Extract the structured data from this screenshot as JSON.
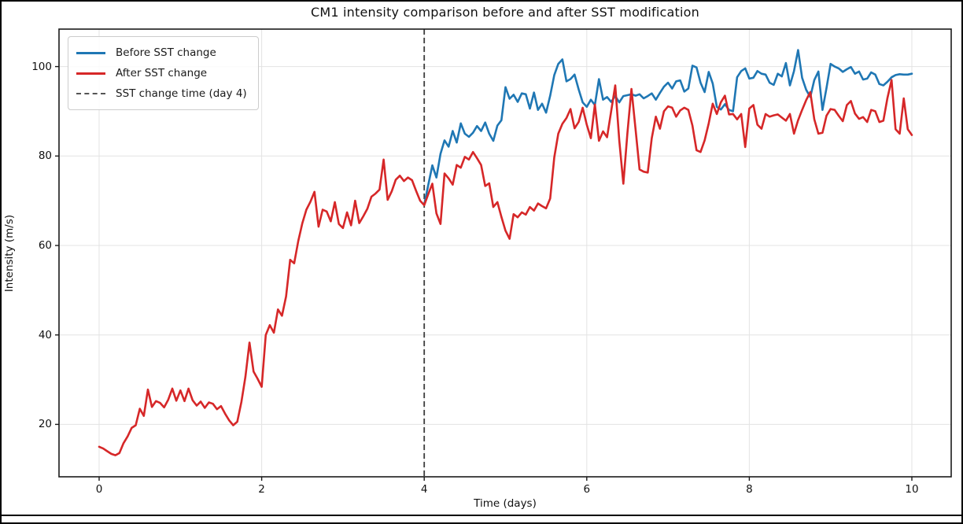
{
  "chart_data": {
    "type": "line",
    "title": "CM1 intensity comparison before and after SST modification",
    "xlabel": "Time (days)",
    "ylabel": "Intensity (m/s)",
    "xlim": [
      -0.5,
      10.5
    ],
    "ylim": [
      8.3,
      108.4
    ],
    "x_ticks": [
      0,
      2,
      4,
      6,
      8,
      10
    ],
    "y_ticks": [
      20,
      40,
      60,
      80,
      100
    ],
    "grid": true,
    "grid_color": "#e3e3e3",
    "legend_position": "upper left",
    "vline": {
      "x": 4,
      "label": "SST change time (day 4)",
      "color": "#3d3d3d",
      "style": "dashed"
    },
    "series": [
      {
        "name": "Before SST change",
        "color": "#1f77b4",
        "t0": 4.0,
        "dt": 0.05,
        "values": [
          69.1,
          73.6,
          77.9,
          75.2,
          80.5,
          83.5,
          82.1,
          85.6,
          83.0,
          87.3,
          85.0,
          84.3,
          85.2,
          86.7,
          85.6,
          87.5,
          85.0,
          83.4,
          86.8,
          88.0,
          95.4,
          92.8,
          93.7,
          92.1,
          94.0,
          93.8,
          90.6,
          94.2,
          90.3,
          91.7,
          89.7,
          93.5,
          98.1,
          100.6,
          101.6,
          96.7,
          97.2,
          98.2,
          94.9,
          92.0,
          91.0,
          92.6,
          91.4,
          97.2,
          92.6,
          93.2,
          92.1,
          93.4,
          92.0,
          93.4,
          93.6,
          93.8,
          93.5,
          93.8,
          92.9,
          93.4,
          94.0,
          92.6,
          94.1,
          95.5,
          96.4,
          95.1,
          96.7,
          96.9,
          94.4,
          95.1,
          100.2,
          99.8,
          96.4,
          94.3,
          98.8,
          96.2,
          91.0,
          90.4,
          91.6,
          90.3,
          90.0,
          97.6,
          99.0,
          99.6,
          97.3,
          97.5,
          99.0,
          98.4,
          98.2,
          96.4,
          95.9,
          98.4,
          97.8,
          100.8,
          95.8,
          99.0,
          103.7,
          97.5,
          94.8,
          93.2,
          97.0,
          98.9,
          90.3,
          95.2,
          100.6,
          100.0,
          99.6,
          98.8,
          99.4,
          99.9,
          98.4,
          98.9,
          97.1,
          97.3,
          98.7,
          98.2,
          96.1,
          95.8,
          96.6,
          97.6,
          98.1,
          98.3,
          98.2,
          98.2,
          98.4
        ]
      },
      {
        "name": "After SST change",
        "color": "#d62728",
        "t0": 0.0,
        "dt": 0.05,
        "values": [
          15.0,
          14.6,
          14.0,
          13.4,
          13.1,
          13.6,
          15.8,
          17.3,
          19.2,
          19.8,
          23.5,
          21.9,
          27.8,
          23.9,
          25.2,
          24.8,
          23.8,
          25.5,
          28.0,
          25.3,
          27.6,
          25.2,
          28.0,
          25.4,
          24.2,
          25.1,
          23.7,
          24.9,
          24.6,
          23.4,
          24.1,
          22.4,
          20.9,
          19.8,
          20.6,
          25.0,
          30.6,
          38.3,
          31.8,
          30.2,
          28.4,
          40.0,
          42.2,
          40.5,
          45.7,
          44.3,
          48.6,
          56.8,
          56.0,
          61.0,
          65.0,
          68.0,
          69.8,
          72.0,
          64.2,
          68.0,
          67.6,
          65.4,
          69.7,
          64.8,
          63.9,
          67.4,
          64.5,
          70.0,
          65.0,
          66.5,
          68.2,
          70.9,
          71.6,
          72.5,
          79.2,
          70.2,
          72.1,
          74.7,
          75.6,
          74.4,
          75.2,
          74.6,
          72.2,
          70.0,
          69.0,
          71.5,
          73.8,
          67.2,
          64.8,
          76.1,
          75.0,
          73.6,
          78.0,
          77.4,
          79.8,
          79.2,
          80.9,
          79.5,
          78.0,
          73.3,
          73.9,
          68.6,
          69.7,
          66.4,
          63.3,
          61.5,
          67.0,
          66.3,
          67.4,
          66.9,
          68.6,
          67.8,
          69.4,
          68.8,
          68.3,
          70.5,
          79.7,
          85.0,
          87.2,
          88.5,
          90.5,
          86.2,
          87.6,
          90.8,
          87.0,
          84.0,
          91.5,
          83.4,
          85.5,
          84.2,
          90.0,
          95.8,
          83.5,
          73.8,
          85.0,
          95.0,
          86.0,
          77.0,
          76.5,
          76.3,
          84.0,
          88.8,
          86.1,
          90.0,
          91.1,
          90.8,
          88.8,
          90.2,
          90.8,
          90.3,
          86.8,
          81.3,
          80.9,
          83.5,
          87.3,
          91.7,
          89.4,
          92.0,
          93.5,
          89.3,
          89.4,
          88.2,
          89.4,
          82.0,
          90.6,
          91.4,
          87.0,
          86.1,
          89.4,
          88.8,
          89.1,
          89.3,
          88.6,
          87.9,
          89.4,
          85.0,
          88.0,
          90.3,
          92.5,
          94.3,
          88.2,
          85.0,
          85.2,
          89.0,
          90.5,
          90.3,
          89.0,
          87.8,
          91.4,
          92.3,
          89.5,
          88.3,
          88.7,
          87.6,
          90.3,
          90.0,
          87.6,
          87.9,
          93.0,
          97.0,
          86.0,
          85.0,
          92.9,
          86.0,
          84.7
        ]
      }
    ]
  },
  "legend": {
    "items": [
      {
        "swatch": "blue-solid-line"
      },
      {
        "swatch": "red-solid-line"
      },
      {
        "swatch": "gray-dashed-line"
      }
    ]
  }
}
